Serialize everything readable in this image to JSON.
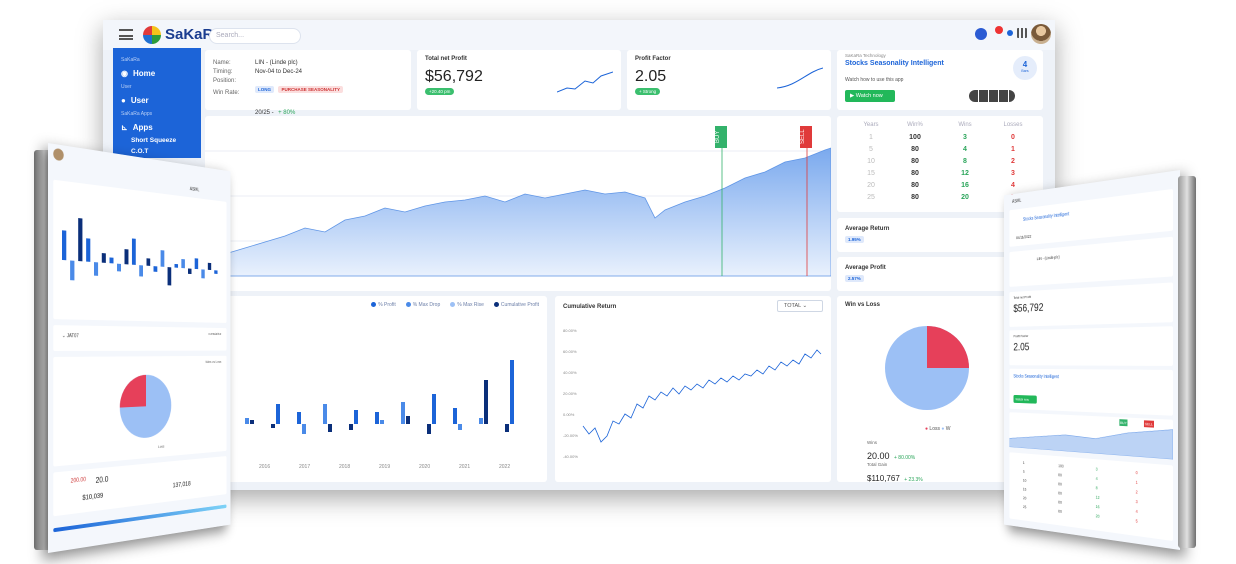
{
  "brand": {
    "name": "SaKaRa"
  },
  "search": {
    "placeholder": "Search..."
  },
  "sidebar": {
    "section_main": "SaKaRa",
    "home_label": "Home",
    "section_user": "User",
    "user_label": "User",
    "section_apps": "SaKaRa Apps",
    "apps_label": "Apps",
    "sub_items": [
      "Short Squeeze",
      "C.O.T"
    ]
  },
  "info_card": {
    "name_label": "Name:",
    "name_value": "LIN - (Linde plc)",
    "timing_label": "Timing:",
    "timing_value": "Nov-04 to Dec-24",
    "position_label": "Position:",
    "position_long": "LONG",
    "position_short": "PURCHASE SEASONALITY",
    "winrate_label": "Win Rate:",
    "winrate_value": "20/25 -",
    "winrate_pct": "+ 80%"
  },
  "net_profit": {
    "title": "Total net Profit",
    "value": "$56,792",
    "pill": "+20.40 pm"
  },
  "profit_factor": {
    "title": "Profit Factor",
    "value": "2.05",
    "pill": "+ Strong"
  },
  "promo": {
    "kicker": "SaKaRa Technology",
    "title": "Stocks Seasonality Intelligent",
    "subtitle": "Watch how to use this app",
    "button": "Watch now",
    "count": "4",
    "count_unit": "Bars"
  },
  "main_chart": {
    "buy_label": "BUY",
    "sell_label": "SELL"
  },
  "stats_table": {
    "headers": [
      "Years",
      "Win%",
      "Wins",
      "Losses"
    ],
    "rows": [
      [
        "1",
        "100",
        "3",
        "0"
      ],
      [
        "5",
        "80",
        "4",
        "1"
      ],
      [
        "10",
        "80",
        "8",
        "2"
      ],
      [
        "15",
        "80",
        "12",
        "3"
      ],
      [
        "20",
        "80",
        "16",
        "4"
      ],
      [
        "25",
        "80",
        "20",
        "5"
      ]
    ]
  },
  "avg_return": {
    "title": "Average Return",
    "value": "1.95%"
  },
  "avg_profit": {
    "title": "Average Profit",
    "value": "2.57%"
  },
  "bar_chart": {
    "legend": [
      "% Profit",
      "% Max Drop",
      "% Max Rise",
      "Cumulative Profit"
    ],
    "years": [
      "2015",
      "2016",
      "2017",
      "2018",
      "2019",
      "2020",
      "2021",
      "2022"
    ]
  },
  "cumulative": {
    "title": "Cumulative Return",
    "select": "TOTAL",
    "ylabels": [
      "80.00%",
      "60.00%",
      "40.00%",
      "20.00%",
      "0.00%",
      "-20.00%",
      "-40.00%"
    ]
  },
  "winloss": {
    "title": "Win vs Loss",
    "legend_loss": "Loss",
    "legend_win": "W",
    "wins_label": "Wins",
    "wins_value": "20.00",
    "wins_pct": "+ 80.00%",
    "total_label": "Total Gain",
    "total_value": "$110,767",
    "total_pct": "+ 23.3%"
  },
  "book_left": {
    "header": "ASML",
    "select_value": "JAT07",
    "cum_label": "cumulative",
    "pie_title": "Wins vs Loss",
    "pie_legend": "Loss",
    "stat1": "200.00",
    "stat2": "20.0",
    "stat3": "137,018",
    "stat4": "$10,039"
  },
  "book_right": {
    "header": "ASML",
    "promo_title": "Stocks Seasonality Intelligent",
    "date_value": "04/11/2022",
    "name_value": "LIN - (Linde plc)",
    "net_title": "Total net Profit",
    "net_value": "$56,792",
    "pf_title": "Profit Factor",
    "pf_value": "2.05",
    "promo2_title": "Stocks Seasonality Intelligent",
    "button": "Watch now",
    "buy": "BUY",
    "sell": "SELL"
  }
}
